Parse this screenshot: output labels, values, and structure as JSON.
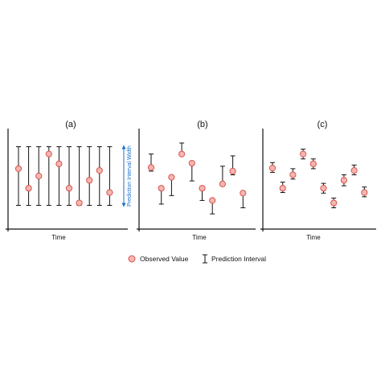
{
  "colors": {
    "marker_fill": "#f4b6b0",
    "marker_stroke": "#d9534f",
    "interval_stroke": "#111111",
    "axis_stroke": "#111111",
    "width_arrow": "#1f6fc5"
  },
  "panels": [
    {
      "label": "(a)",
      "xlabel": "Time",
      "intervals": [
        {
          "low": 0.02,
          "high": 0.98,
          "obs": 0.62
        },
        {
          "low": 0.02,
          "high": 0.98,
          "obs": 0.3
        },
        {
          "low": 0.02,
          "high": 0.98,
          "obs": 0.5
        },
        {
          "low": 0.02,
          "high": 0.98,
          "obs": 0.86
        },
        {
          "low": 0.02,
          "high": 0.98,
          "obs": 0.7
        },
        {
          "low": 0.02,
          "high": 0.98,
          "obs": 0.3
        },
        {
          "low": 0.02,
          "high": 0.98,
          "obs": 0.06
        },
        {
          "low": 0.02,
          "high": 0.98,
          "obs": 0.43
        },
        {
          "low": 0.02,
          "high": 0.98,
          "obs": 0.59
        },
        {
          "low": 0.02,
          "high": 0.98,
          "obs": 0.23
        }
      ],
      "annotation": "Prediction Interval Width"
    },
    {
      "label": "(b)",
      "xlabel": "Time",
      "intervals": [
        {
          "low": 0.58,
          "high": 0.86,
          "obs": 0.64
        },
        {
          "low": 0.04,
          "high": 0.3,
          "obs": 0.3
        },
        {
          "low": 0.18,
          "high": 0.48,
          "obs": 0.48
        },
        {
          "low": 0.88,
          "high": 1.04,
          "obs": 0.86
        },
        {
          "low": 0.42,
          "high": 0.71,
          "obs": 0.71
        },
        {
          "low": 0.1,
          "high": 0.3,
          "obs": 0.3
        },
        {
          "low": -0.12,
          "high": 0.1,
          "obs": 0.1
        },
        {
          "low": 0.34,
          "high": 0.66,
          "obs": 0.37
        },
        {
          "low": 0.52,
          "high": 0.83,
          "obs": 0.58
        },
        {
          "low": -0.02,
          "high": 0.22,
          "obs": 0.22
        }
      ]
    },
    {
      "label": "(c)",
      "xlabel": "Time",
      "intervals": [
        {
          "low": 0.56,
          "high": 0.72,
          "obs": 0.63
        },
        {
          "low": 0.23,
          "high": 0.4,
          "obs": 0.3
        },
        {
          "low": 0.45,
          "high": 0.62,
          "obs": 0.52
        },
        {
          "low": 0.78,
          "high": 0.94,
          "obs": 0.86
        },
        {
          "low": 0.62,
          "high": 0.78,
          "obs": 0.7
        },
        {
          "low": 0.22,
          "high": 0.38,
          "obs": 0.3
        },
        {
          "low": -0.02,
          "high": 0.14,
          "obs": 0.06
        },
        {
          "low": 0.34,
          "high": 0.52,
          "obs": 0.43
        },
        {
          "low": 0.52,
          "high": 0.68,
          "obs": 0.59
        },
        {
          "low": 0.16,
          "high": 0.32,
          "obs": 0.23
        }
      ]
    }
  ],
  "legend": {
    "observed_icon": "circle-marker-icon",
    "observed_label": "Observed  Value",
    "interval_icon": "error-bar-icon",
    "interval_label": "Prediction Interval"
  }
}
